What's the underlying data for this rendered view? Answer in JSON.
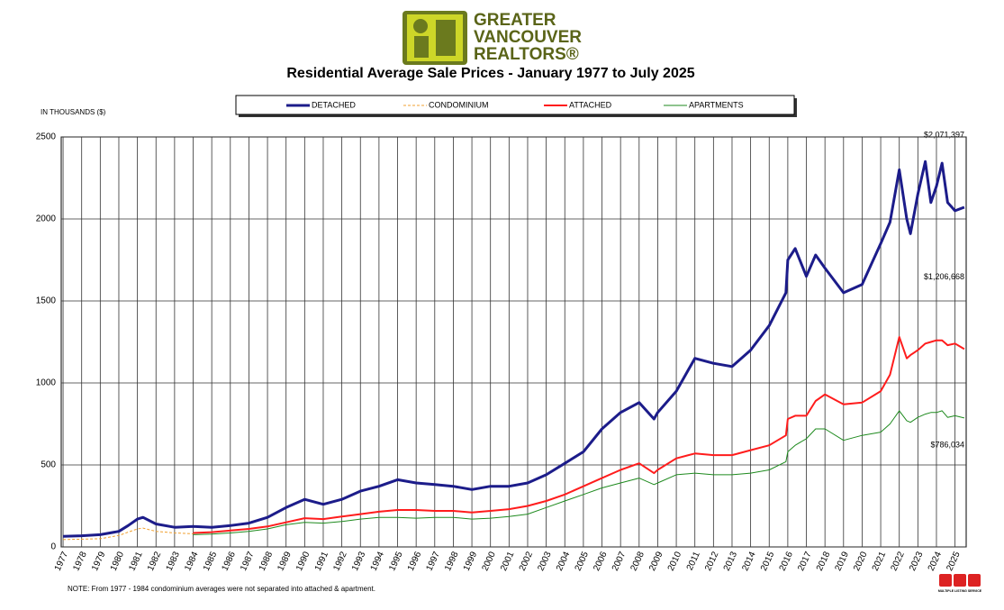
{
  "logo": {
    "lines": [
      "GREATER",
      "VANCOUVER",
      "REALTORS®"
    ]
  },
  "mls_logo": "MULTIPLE LISTING SERVICE",
  "note": "NOTE:  From 1977 - 1984 condominium averages were not separated into attached & apartment.",
  "chart_data": {
    "type": "line",
    "title": "Residential Average Sale Prices  -  January 1977 to July 2025",
    "y_label": "IN THOUSANDS ($)",
    "x": [
      1977,
      1978,
      1979,
      1980,
      1980.5,
      1981,
      1981.3,
      1982,
      1983,
      1984,
      1985,
      1986,
      1987,
      1988,
      1989,
      1990,
      1991,
      1992,
      1993,
      1994,
      1995,
      1996,
      1997,
      1998,
      1999,
      2000,
      2001,
      2002,
      2003,
      2004,
      2005,
      2006,
      2007,
      2008,
      2008.8,
      2009,
      2010,
      2011,
      2012,
      2013,
      2014,
      2015,
      2015.9,
      2016,
      2016.4,
      2017,
      2017.5,
      2018,
      2019,
      2020,
      2021,
      2021.5,
      2022,
      2022.4,
      2022.6,
      2023,
      2023.4,
      2023.7,
      2024,
      2024.3,
      2024.6,
      2025,
      2025.5
    ],
    "xlim": [
      1976.9,
      2025.6
    ],
    "xticks": [
      1977,
      1978,
      1979,
      1980,
      1981,
      1982,
      1983,
      1984,
      1985,
      1986,
      1987,
      1988,
      1989,
      1990,
      1991,
      1992,
      1993,
      1994,
      1995,
      1996,
      1997,
      1998,
      1999,
      2000,
      2001,
      2002,
      2003,
      2004,
      2005,
      2006,
      2007,
      2008,
      2009,
      2010,
      2011,
      2012,
      2013,
      2014,
      2015,
      2016,
      2017,
      2018,
      2019,
      2020,
      2021,
      2022,
      2023,
      2024,
      2025
    ],
    "ylim": [
      0,
      2500
    ],
    "yticks": [
      0,
      500,
      1000,
      1500,
      2000,
      2500
    ],
    "grid": true,
    "series": [
      {
        "name": "DETACHED",
        "color": "#1c1c8a",
        "width": 3,
        "end_label": "$2,071,397",
        "values": [
          65,
          68,
          75,
          95,
          130,
          170,
          180,
          140,
          120,
          125,
          120,
          130,
          145,
          180,
          240,
          290,
          260,
          290,
          340,
          370,
          410,
          390,
          380,
          370,
          350,
          370,
          370,
          390,
          440,
          510,
          580,
          720,
          820,
          880,
          780,
          820,
          950,
          1150,
          1120,
          1100,
          1200,
          1350,
          1550,
          1750,
          1820,
          1650,
          1780,
          1700,
          1550,
          1600,
          1850,
          1980,
          2300,
          2000,
          1910,
          2150,
          2350,
          2100,
          2200,
          2340,
          2100,
          2050,
          2071.397
        ]
      },
      {
        "name": "CONDOMINIUM",
        "color": "#f0a030",
        "width": 1,
        "dashed": true,
        "values": [
          45,
          47,
          50,
          70,
          90,
          110,
          115,
          95,
          85,
          80,
          null,
          null,
          null,
          null,
          null,
          null,
          null,
          null,
          null,
          null,
          null,
          null,
          null,
          null,
          null,
          null,
          null,
          null,
          null,
          null,
          null,
          null,
          null,
          null,
          null,
          null,
          null,
          null,
          null,
          null,
          null,
          null,
          null,
          null,
          null,
          null,
          null,
          null,
          null,
          null,
          null,
          null,
          null,
          null,
          null,
          null,
          null,
          null,
          null,
          null,
          null,
          null,
          null
        ]
      },
      {
        "name": "ATTACHED",
        "color": "#ff1c1c",
        "width": 2,
        "end_label": "$1,206,668",
        "values": [
          null,
          null,
          null,
          null,
          null,
          null,
          null,
          null,
          null,
          85,
          90,
          100,
          110,
          125,
          150,
          175,
          170,
          185,
          200,
          215,
          225,
          225,
          220,
          220,
          210,
          220,
          230,
          250,
          280,
          320,
          370,
          420,
          470,
          510,
          450,
          470,
          540,
          570,
          560,
          560,
          590,
          620,
          680,
          780,
          800,
          800,
          890,
          930,
          870,
          880,
          950,
          1050,
          1280,
          1150,
          1170,
          1200,
          1240,
          1250,
          1260,
          1260,
          1230,
          1240,
          1206.668
        ]
      },
      {
        "name": "APARTMENTS",
        "color": "#1e8a1e",
        "width": 1,
        "end_label": "$786,034",
        "values": [
          null,
          null,
          null,
          null,
          null,
          null,
          null,
          null,
          null,
          75,
          78,
          85,
          95,
          110,
          135,
          150,
          145,
          155,
          170,
          180,
          180,
          175,
          180,
          180,
          170,
          175,
          185,
          200,
          240,
          280,
          320,
          360,
          390,
          420,
          380,
          390,
          440,
          450,
          440,
          440,
          450,
          470,
          520,
          580,
          620,
          660,
          720,
          720,
          650,
          680,
          700,
          750,
          830,
          770,
          760,
          790,
          810,
          820,
          820,
          830,
          790,
          800,
          786.034
        ]
      }
    ]
  }
}
